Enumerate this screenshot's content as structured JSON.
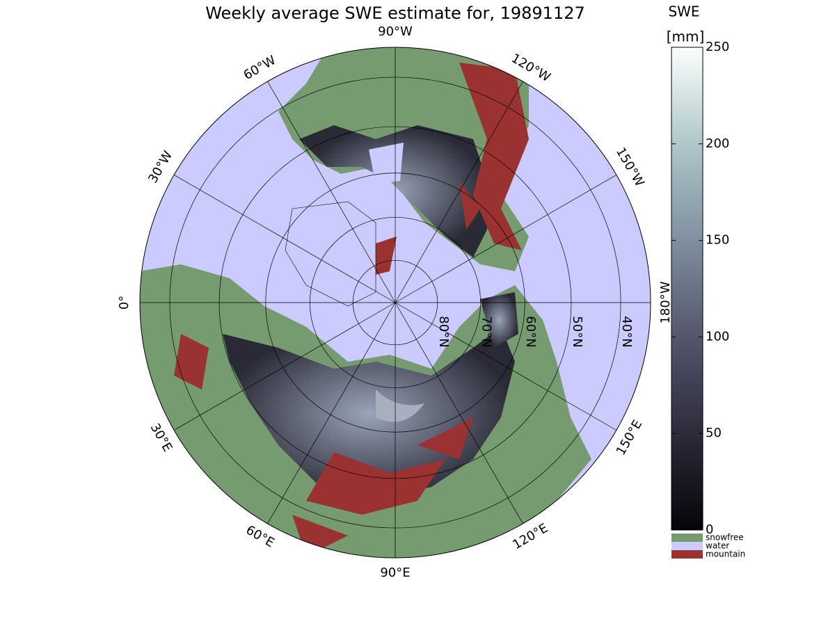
{
  "title": "Weekly average SWE estimate for, 19891127",
  "map": {
    "longitude_labels": [
      {
        "value": -90,
        "label": "90°W"
      },
      {
        "value": -60,
        "label": "60°W"
      },
      {
        "value": -30,
        "label": "30°W"
      },
      {
        "value": 0,
        "label": "0°"
      },
      {
        "value": 30,
        "label": "30°E"
      },
      {
        "value": 60,
        "label": "60°E"
      },
      {
        "value": 90,
        "label": "90°E"
      },
      {
        "value": 120,
        "label": "120°E"
      },
      {
        "value": 150,
        "label": "150°E"
      },
      {
        "value": -180,
        "label": "180°W"
      },
      {
        "value": -150,
        "label": "150°W"
      },
      {
        "value": -120,
        "label": "120°W"
      }
    ],
    "latitude_labels": [
      {
        "value": 80,
        "label": "80°N"
      },
      {
        "value": 70,
        "label": "70°N"
      },
      {
        "value": 60,
        "label": "60°N"
      },
      {
        "value": 50,
        "label": "50°N"
      },
      {
        "value": 40,
        "label": "40°N"
      }
    ]
  },
  "colorbar": {
    "title": "SWE",
    "unit": "[mm]",
    "lim": [
      0,
      250
    ],
    "ticks": [
      0,
      50,
      100,
      150,
      200,
      250
    ]
  },
  "legend": [
    {
      "name": "snowfree",
      "color": "#769b70"
    },
    {
      "name": "water",
      "color": "#cccbff"
    },
    {
      "name": "mountain",
      "color": "#9b3232"
    }
  ]
}
